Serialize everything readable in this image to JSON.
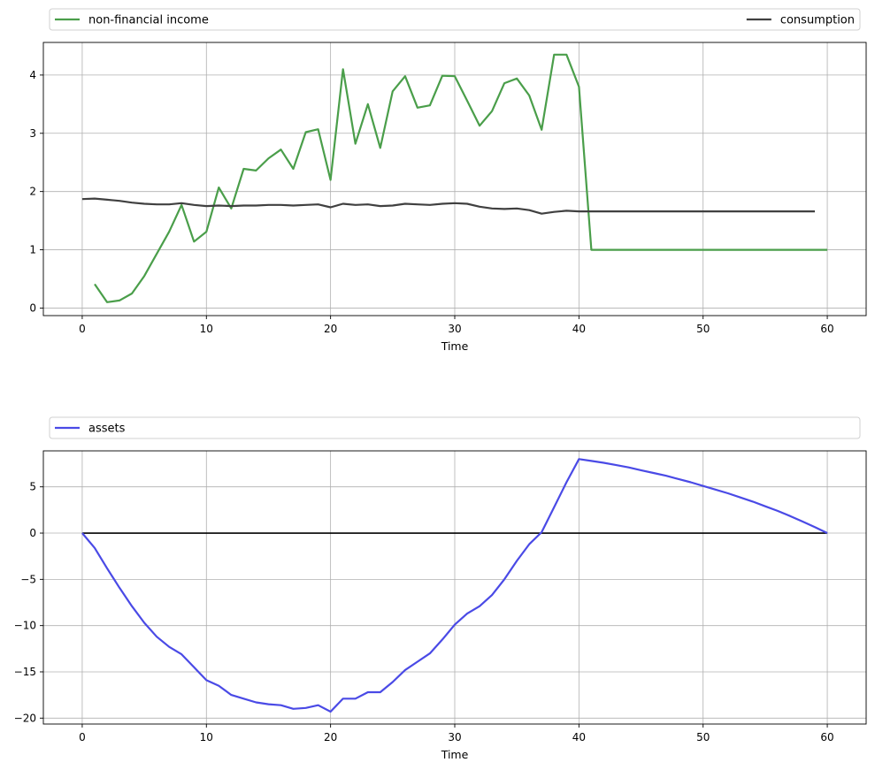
{
  "chart_data": [
    {
      "type": "line",
      "xlabel": "Time",
      "ylabel": "",
      "xlim": [
        -3.13,
        63.13
      ],
      "ylim": [
        -0.13,
        4.56
      ],
      "xticks": [
        0,
        10,
        20,
        30,
        40,
        50,
        60
      ],
      "yticks": [
        0,
        1,
        2,
        3,
        4
      ],
      "grid": true,
      "legend_position": "top",
      "series": [
        {
          "name": "non-financial income",
          "color": "#4a9e4a",
          "x": [
            1,
            2,
            3,
            4,
            5,
            6,
            7,
            8,
            9,
            10,
            11,
            12,
            13,
            14,
            15,
            16,
            17,
            18,
            19,
            20,
            21,
            22,
            23,
            24,
            25,
            26,
            27,
            28,
            29,
            30,
            31,
            32,
            33,
            34,
            35,
            36,
            37,
            38,
            39,
            40,
            41,
            42,
            43,
            44,
            45,
            46,
            47,
            48,
            49,
            50,
            51,
            52,
            53,
            54,
            55,
            56,
            57,
            58,
            59,
            60
          ],
          "y": [
            0.41,
            0.1,
            0.13,
            0.25,
            0.55,
            0.93,
            1.31,
            1.77,
            1.14,
            1.31,
            2.07,
            1.71,
            2.39,
            2.36,
            2.57,
            2.72,
            2.39,
            3.02,
            3.07,
            2.2,
            4.1,
            2.82,
            3.5,
            2.75,
            3.72,
            3.98,
            3.44,
            3.48,
            3.99,
            3.98,
            3.56,
            3.13,
            3.38,
            3.86,
            3.94,
            3.65,
            3.06,
            4.35,
            4.35,
            3.8,
            1.0,
            1.0,
            1.0,
            1.0,
            1.0,
            1.0,
            1.0,
            1.0,
            1.0,
            1.0,
            1.0,
            1.0,
            1.0,
            1.0,
            1.0,
            1.0,
            1.0,
            1.0,
            1.0,
            1.0
          ]
        },
        {
          "name": "consumption",
          "color": "#404040",
          "x": [
            0,
            1,
            2,
            3,
            4,
            5,
            6,
            7,
            8,
            9,
            10,
            11,
            12,
            13,
            14,
            15,
            16,
            17,
            18,
            19,
            20,
            21,
            22,
            23,
            24,
            25,
            26,
            27,
            28,
            29,
            30,
            31,
            32,
            33,
            34,
            35,
            36,
            37,
            38,
            39,
            40,
            41,
            42,
            43,
            44,
            45,
            46,
            47,
            48,
            49,
            50,
            51,
            52,
            53,
            54,
            55,
            56,
            57,
            58,
            59
          ],
          "y": [
            1.87,
            1.88,
            1.86,
            1.84,
            1.81,
            1.79,
            1.78,
            1.78,
            1.8,
            1.77,
            1.75,
            1.76,
            1.75,
            1.76,
            1.76,
            1.77,
            1.77,
            1.76,
            1.77,
            1.78,
            1.73,
            1.79,
            1.77,
            1.78,
            1.75,
            1.76,
            1.79,
            1.78,
            1.77,
            1.79,
            1.8,
            1.79,
            1.74,
            1.71,
            1.7,
            1.71,
            1.68,
            1.62,
            1.65,
            1.67,
            1.66,
            1.66,
            1.66,
            1.66,
            1.66,
            1.66,
            1.66,
            1.66,
            1.66,
            1.66,
            1.66,
            1.66,
            1.66,
            1.66,
            1.66,
            1.66,
            1.66,
            1.66,
            1.66,
            1.66
          ]
        }
      ]
    },
    {
      "type": "line",
      "xlabel": "Time",
      "ylabel": "",
      "xlim": [
        -3.13,
        63.13
      ],
      "ylim": [
        -20.64,
        8.89
      ],
      "xticks": [
        0,
        10,
        20,
        30,
        40,
        50,
        60
      ],
      "yticks": [
        -20,
        -15,
        -10,
        -5,
        0,
        5
      ],
      "grid": true,
      "legend_position": "top",
      "zero_line": {
        "y": 0,
        "color": "#000000"
      },
      "series": [
        {
          "name": "assets",
          "color": "#4a4ae6",
          "x": [
            0,
            1,
            2,
            3,
            4,
            5,
            6,
            7,
            8,
            9,
            10,
            11,
            12,
            13,
            14,
            15,
            16,
            17,
            18,
            19,
            20,
            21,
            22,
            23,
            24,
            25,
            26,
            27,
            28,
            29,
            30,
            31,
            32,
            33,
            34,
            35,
            36,
            37,
            38,
            39,
            40,
            41,
            42,
            43,
            44,
            45,
            46,
            47,
            48,
            49,
            50,
            51,
            52,
            53,
            54,
            55,
            56,
            57,
            58,
            59,
            60
          ],
          "y": [
            0,
            -1.6,
            -3.8,
            -5.9,
            -7.9,
            -9.7,
            -11.2,
            -12.3,
            -13.1,
            -14.5,
            -15.9,
            -16.5,
            -17.5,
            -17.9,
            -18.3,
            -18.5,
            -18.6,
            -19.0,
            -18.9,
            -18.6,
            -19.3,
            -17.9,
            -17.9,
            -17.2,
            -17.2,
            -16.1,
            -14.8,
            -13.9,
            -13.0,
            -11.5,
            -9.9,
            -8.7,
            -7.9,
            -6.7,
            -5.0,
            -3.0,
            -1.2,
            0.1,
            2.8,
            5.5,
            8.0,
            7.8,
            7.6,
            7.35,
            7.1,
            6.8,
            6.5,
            6.2,
            5.85,
            5.5,
            5.1,
            4.7,
            4.3,
            3.85,
            3.4,
            2.9,
            2.4,
            1.85,
            1.25,
            0.65,
            0.0
          ]
        }
      ]
    }
  ]
}
